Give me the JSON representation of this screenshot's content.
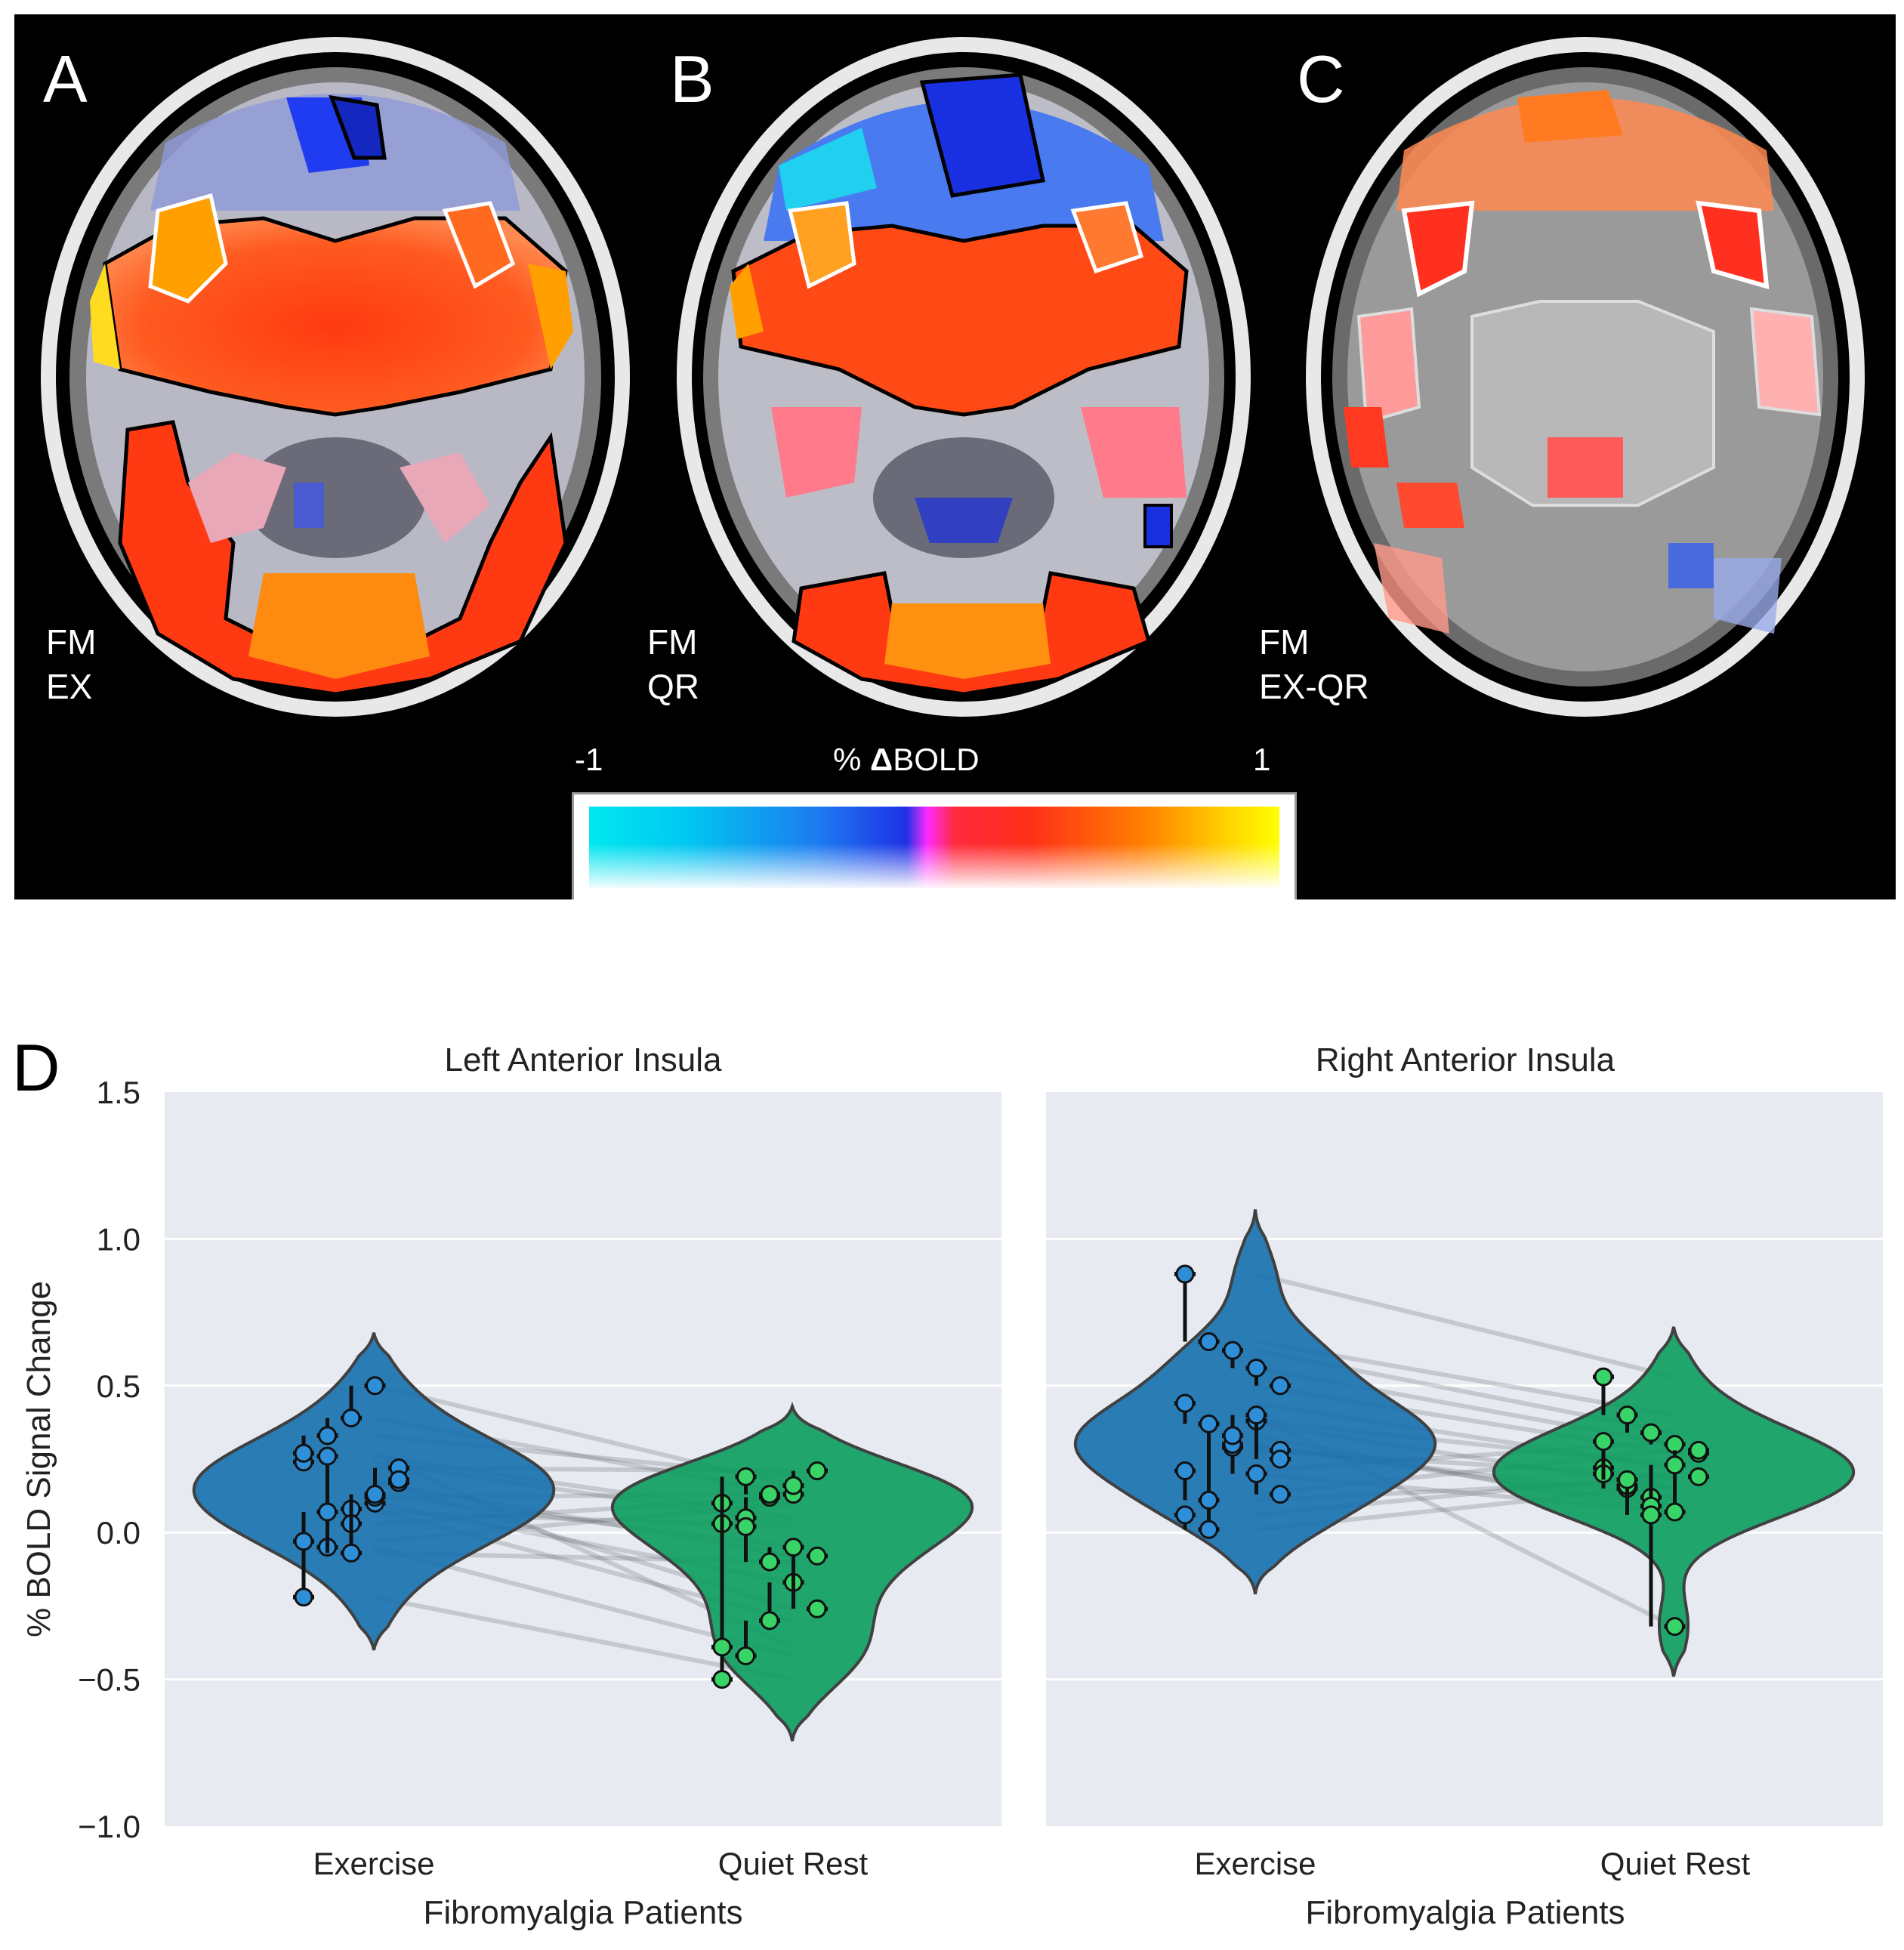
{
  "brain_panels": [
    {
      "letter": "A",
      "label": "FM\nEX"
    },
    {
      "letter": "B",
      "label": "FM\nQR"
    },
    {
      "letter": "C",
      "label": "FM\nEX-QR"
    }
  ],
  "colorbar": {
    "min_label": "-1",
    "title_prefix": "% ",
    "title_delta": "Δ",
    "title_suffix": "BOLD",
    "max_label": "1"
  },
  "panel_d_letter": "D",
  "colors": {
    "exercise": "#1a72b0",
    "quiet_rest": "#0f9e62",
    "exercise_point": "#2e8fd8",
    "quiet_rest_point": "#38d468",
    "plot_bg": "#e7eaf1"
  },
  "chart_data": [
    {
      "type": "violin",
      "title": "Left Anterior Insula",
      "xlabel": "Fibromyalgia Patients",
      "ylabel": "% BOLD Signal Change",
      "categories": [
        "Exercise",
        "Quiet Rest"
      ],
      "ylim": [
        -1.0,
        1.5
      ],
      "yticks": [
        "1.5",
        "1.0",
        "0.5",
        "0.0",
        "−0.5",
        "−1.0"
      ],
      "ytick_values": [
        1.5,
        1.0,
        0.5,
        0.0,
        -0.5,
        -1.0
      ],
      "grid": true,
      "violin_range": [
        [
          -0.4,
          0.68
        ],
        [
          -0.71,
          0.43
        ]
      ],
      "points": [
        [
          -0.22,
          -0.05,
          0.08,
          0.1,
          0.17,
          0.24,
          0.26,
          0.03,
          0.12,
          0.22,
          -0.03,
          0.07,
          -0.07,
          0.13,
          0.18,
          0.27,
          0.33,
          0.39,
          0.5
        ],
        [
          -0.5,
          -0.42,
          -0.3,
          -0.17,
          -0.08,
          0.03,
          0.05,
          0.12,
          0.13,
          0.21,
          0.1,
          0.02,
          -0.1,
          -0.05,
          -0.26,
          -0.39,
          0.19,
          0.13,
          0.16
        ]
      ]
    },
    {
      "type": "violin",
      "title": "Right Anterior Insula",
      "xlabel": "Fibromyalgia Patients",
      "ylabel": "",
      "categories": [
        "Exercise",
        "Quiet Rest"
      ],
      "ylim": [
        -1.0,
        1.5
      ],
      "grid": true,
      "violin_range": [
        [
          -0.21,
          1.1
        ],
        [
          -0.49,
          0.7
        ]
      ],
      "points": [
        [
          0.88,
          0.65,
          0.62,
          0.56,
          0.5,
          0.44,
          0.37,
          0.29,
          0.2,
          0.13,
          0.06,
          0.01,
          0.3,
          0.38,
          0.28,
          0.21,
          0.11,
          0.33,
          0.4,
          0.25
        ],
        [
          0.53,
          0.4,
          0.34,
          0.3,
          0.27,
          0.22,
          0.15,
          0.12,
          0.07,
          0.28,
          0.2,
          0.16,
          0.09,
          0.23,
          0.19,
          0.31,
          0.18,
          0.06,
          -0.32
        ]
      ]
    }
  ]
}
